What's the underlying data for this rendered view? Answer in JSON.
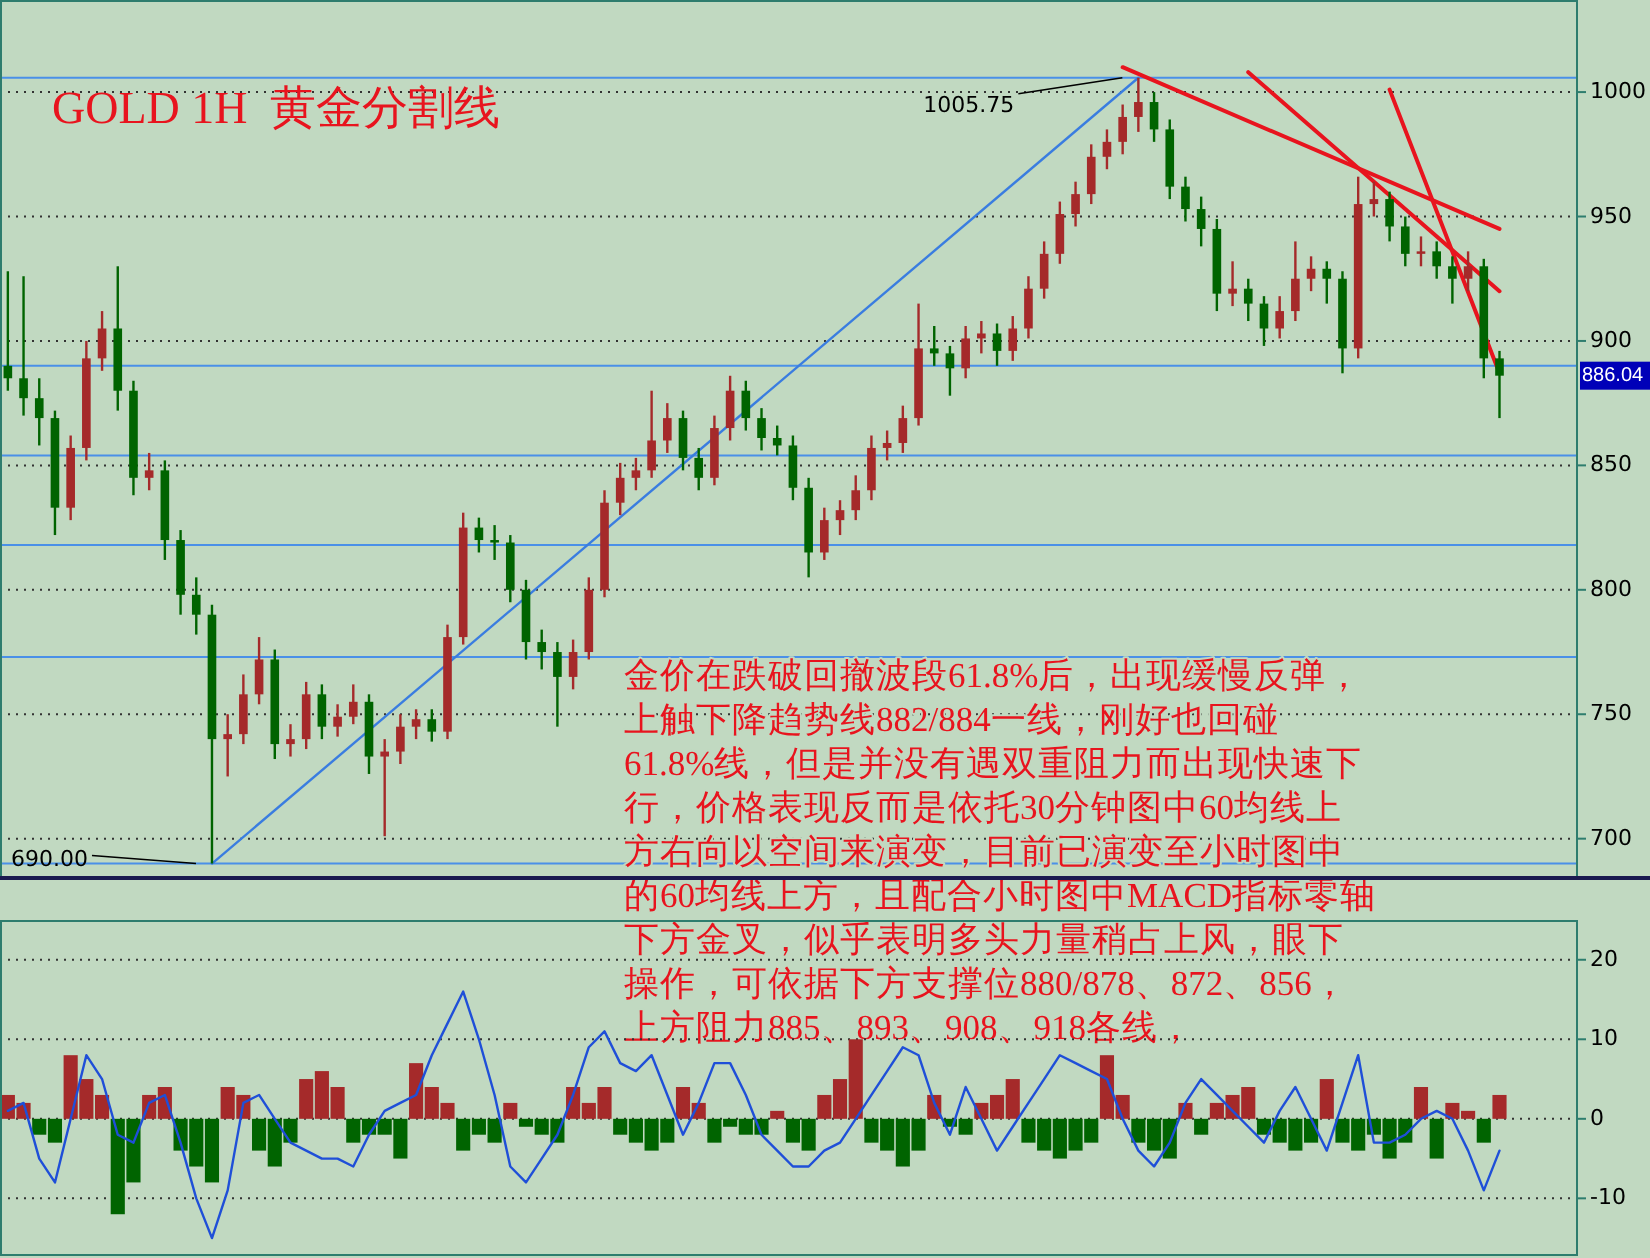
{
  "chart_data": [
    {
      "type": "candlestick",
      "title": "GOLD 1H  黄金分割线",
      "categories": [
        null,
        null,
        null,
        null,
        null,
        null,
        null,
        null,
        null,
        null,
        null,
        null,
        null,
        null,
        null,
        null,
        null,
        null,
        null,
        null,
        null,
        null,
        null,
        null,
        null,
        null,
        null,
        null,
        null,
        null,
        null,
        null,
        null,
        null,
        null,
        null,
        null,
        null,
        null,
        null,
        null,
        null,
        null,
        null,
        null,
        null,
        null,
        null,
        null,
        null,
        null,
        null,
        null,
        null,
        null,
        null,
        null,
        null,
        null,
        null,
        null,
        null,
        null,
        null,
        null,
        null,
        null,
        null,
        null,
        null,
        null,
        null,
        null,
        null,
        null,
        null,
        null,
        null,
        null,
        null,
        null,
        null,
        null,
        null,
        null,
        null,
        null,
        null,
        null,
        null,
        null,
        null,
        null,
        null,
        null,
        null
      ],
      "ohlc": [
        [
          890,
          928,
          880,
          885
        ],
        [
          885,
          926,
          870,
          877
        ],
        [
          877,
          885,
          858,
          869
        ],
        [
          869,
          872,
          822,
          833
        ],
        [
          833,
          862,
          828,
          857
        ],
        [
          857,
          900,
          852,
          893
        ],
        [
          893,
          912,
          888,
          905
        ],
        [
          905,
          930,
          872,
          880
        ],
        [
          880,
          884,
          838,
          845
        ],
        [
          845,
          855,
          840,
          848
        ],
        [
          848,
          852,
          812,
          820
        ],
        [
          820,
          824,
          790,
          798
        ],
        [
          798,
          805,
          782,
          790
        ],
        [
          790,
          794,
          690,
          740
        ],
        [
          740,
          750,
          725,
          742
        ],
        [
          742,
          766,
          738,
          758
        ],
        [
          758,
          781,
          754,
          772
        ],
        [
          772,
          776,
          732,
          738
        ],
        [
          738,
          746,
          733,
          740
        ],
        [
          740,
          763,
          736,
          758
        ],
        [
          758,
          762,
          740,
          745
        ],
        [
          745,
          754,
          741,
          749
        ],
        [
          749,
          762,
          746,
          755
        ],
        [
          755,
          758,
          726,
          733
        ],
        [
          733,
          740,
          701,
          735
        ],
        [
          735,
          750,
          730,
          745
        ],
        [
          745,
          752,
          740,
          748
        ],
        [
          748,
          752,
          739,
          743
        ],
        [
          743,
          786,
          740,
          781
        ],
        [
          781,
          831,
          778,
          825
        ],
        [
          825,
          829,
          815,
          820
        ],
        [
          820,
          826,
          812,
          819
        ],
        [
          819,
          822,
          795,
          800
        ],
        [
          800,
          804,
          772,
          779
        ],
        [
          779,
          784,
          768,
          775
        ],
        [
          775,
          779,
          745,
          765
        ],
        [
          765,
          780,
          760,
          775
        ],
        [
          775,
          805,
          772,
          800
        ],
        [
          800,
          840,
          797,
          835
        ],
        [
          835,
          851,
          830,
          845
        ],
        [
          845,
          853,
          840,
          848
        ],
        [
          848,
          880,
          845,
          860
        ],
        [
          860,
          875,
          855,
          869
        ],
        [
          869,
          872,
          848,
          853
        ],
        [
          853,
          857,
          840,
          845
        ],
        [
          845,
          870,
          842,
          865
        ],
        [
          865,
          886,
          860,
          880
        ],
        [
          880,
          884,
          864,
          869
        ],
        [
          869,
          873,
          856,
          861
        ],
        [
          861,
          866,
          854,
          858
        ],
        [
          858,
          862,
          836,
          841
        ],
        [
          841,
          845,
          805,
          815
        ],
        [
          815,
          833,
          812,
          828
        ],
        [
          828,
          836,
          822,
          832
        ],
        [
          832,
          846,
          828,
          840
        ],
        [
          840,
          862,
          836,
          857
        ],
        [
          857,
          864,
          852,
          859
        ],
        [
          859,
          874,
          855,
          869
        ],
        [
          869,
          915,
          866,
          897
        ],
        [
          897,
          906,
          890,
          895
        ],
        [
          895,
          898,
          878,
          889
        ],
        [
          889,
          906,
          885,
          901
        ],
        [
          901,
          908,
          895,
          903
        ],
        [
          903,
          907,
          890,
          896
        ],
        [
          896,
          910,
          892,
          905
        ],
        [
          905,
          926,
          901,
          921
        ],
        [
          921,
          940,
          917,
          935
        ],
        [
          935,
          956,
          931,
          951
        ],
        [
          951,
          964,
          946,
          959
        ],
        [
          959,
          979,
          955,
          974
        ],
        [
          974,
          985,
          969,
          980
        ],
        [
          980,
          995,
          975,
          990
        ],
        [
          990,
          1005.75,
          984,
          996
        ],
        [
          996,
          1000,
          980,
          985
        ],
        [
          985,
          989,
          957,
          962
        ],
        [
          962,
          966,
          948,
          953
        ],
        [
          953,
          958,
          938,
          945
        ],
        [
          945,
          949,
          912,
          919
        ],
        [
          919,
          932,
          914,
          921
        ],
        [
          921,
          925,
          908,
          915
        ],
        [
          915,
          918,
          898,
          905
        ],
        [
          905,
          918,
          901,
          912
        ],
        [
          912,
          940,
          908,
          925
        ],
        [
          925,
          934,
          920,
          929
        ],
        [
          929,
          932,
          915,
          925
        ],
        [
          925,
          928,
          887,
          897
        ],
        [
          897,
          966,
          893,
          955
        ],
        [
          955,
          964,
          950,
          957
        ],
        [
          957,
          960,
          940,
          946
        ],
        [
          946,
          950,
          930,
          935
        ],
        [
          935,
          942,
          930,
          936
        ],
        [
          936,
          940,
          925,
          930
        ],
        [
          930,
          934,
          915,
          925
        ],
        [
          925,
          936,
          920,
          930
        ],
        [
          930,
          933,
          885,
          893
        ],
        [
          893,
          896,
          869,
          886.04
        ]
      ],
      "colors": [
        "#006400",
        "#006400",
        "#006400",
        "#006400",
        "#a52a2a",
        "#a52a2a",
        "#a52a2a",
        "#006400",
        "#006400",
        "#a52a2a",
        "#006400",
        "#006400",
        "#006400",
        "#006400",
        "#a52a2a",
        "#a52a2a",
        "#a52a2a",
        "#006400",
        "#a52a2a",
        "#a52a2a",
        "#006400",
        "#a52a2a",
        "#a52a2a",
        "#006400",
        "#a52a2a",
        "#a52a2a",
        "#a52a2a",
        "#006400",
        "#a52a2a",
        "#a52a2a",
        "#006400",
        "#006400",
        "#006400",
        "#006400",
        "#006400",
        "#006400",
        "#a52a2a",
        "#a52a2a",
        "#a52a2a",
        "#a52a2a",
        "#a52a2a",
        "#a52a2a",
        "#a52a2a",
        "#006400",
        "#006400",
        "#a52a2a",
        "#a52a2a",
        "#006400",
        "#006400",
        "#006400",
        "#006400",
        "#006400",
        "#a52a2a",
        "#a52a2a",
        "#a52a2a",
        "#a52a2a",
        "#a52a2a",
        "#a52a2a",
        "#a52a2a",
        "#006400",
        "#006400",
        "#a52a2a",
        "#a52a2a",
        "#006400",
        "#a52a2a",
        "#a52a2a",
        "#a52a2a",
        "#a52a2a",
        "#a52a2a",
        "#a52a2a",
        "#a52a2a",
        "#a52a2a",
        "#a52a2a",
        "#006400",
        "#006400",
        "#006400",
        "#006400",
        "#006400",
        "#a52a2a",
        "#006400",
        "#006400",
        "#a52a2a",
        "#a52a2a",
        "#a52a2a",
        "#006400",
        "#006400",
        "#a52a2a",
        "#a52a2a",
        "#006400",
        "#006400",
        "#a52a2a",
        "#006400",
        "#006400",
        "#a52a2a",
        "#006400",
        "#006400"
      ],
      "series": [
        {
          "type": "line",
          "color": "#e8141e",
          "values": [
            null,
            null,
            null,
            null,
            null,
            null,
            null,
            null,
            null,
            null,
            null,
            null,
            null,
            null,
            null,
            null,
            null,
            null,
            null,
            null,
            null,
            null,
            null,
            null,
            null,
            null,
            null,
            null,
            null,
            null,
            null,
            null,
            null,
            null,
            null,
            null,
            null,
            null,
            null,
            null,
            null,
            null,
            null,
            null,
            null,
            null,
            null,
            null,
            null,
            null,
            null,
            null,
            null,
            null,
            null,
            null,
            null,
            null,
            null,
            null,
            null,
            null,
            null,
            null,
            null,
            null,
            null,
            null,
            null,
            null,
            null,
            1010,
            null,
            null,
            null,
            null,
            null,
            null,
            null,
            null,
            null,
            null,
            null,
            null,
            null,
            null,
            null,
            null,
            null,
            null,
            null,
            null,
            null,
            null,
            null,
            945
          ]
        },
        {
          "type": "line",
          "color": "#e8141e",
          "values": [
            null,
            null,
            null,
            null,
            null,
            null,
            null,
            null,
            null,
            null,
            null,
            null,
            null,
            null,
            null,
            null,
            null,
            null,
            null,
            null,
            null,
            null,
            null,
            null,
            null,
            null,
            null,
            null,
            null,
            null,
            null,
            null,
            null,
            null,
            null,
            null,
            null,
            null,
            null,
            null,
            null,
            null,
            null,
            null,
            null,
            null,
            null,
            null,
            null,
            null,
            null,
            null,
            null,
            null,
            null,
            null,
            null,
            null,
            null,
            null,
            null,
            null,
            null,
            null,
            null,
            null,
            null,
            null,
            null,
            null,
            null,
            null,
            null,
            null,
            null,
            null,
            null,
            null,
            null,
            1008,
            null,
            null,
            null,
            null,
            null,
            null,
            null,
            null,
            null,
            null,
            null,
            null,
            null,
            null,
            null,
            920
          ]
        },
        {
          "type": "line",
          "color": "#e8141e",
          "values": [
            null,
            null,
            null,
            null,
            null,
            null,
            null,
            null,
            null,
            null,
            null,
            null,
            null,
            null,
            null,
            null,
            null,
            null,
            null,
            null,
            null,
            null,
            null,
            null,
            null,
            null,
            null,
            null,
            null,
            null,
            null,
            null,
            null,
            null,
            null,
            null,
            null,
            null,
            null,
            null,
            null,
            null,
            null,
            null,
            null,
            null,
            null,
            null,
            null,
            null,
            null,
            null,
            null,
            null,
            null,
            null,
            null,
            null,
            null,
            null,
            null,
            null,
            null,
            null,
            null,
            null,
            null,
            null,
            null,
            null,
            null,
            null,
            null,
            null,
            null,
            null,
            null,
            null,
            null,
            null,
            null,
            null,
            null,
            null,
            null,
            null,
            null,
            null,
            1001,
            null,
            null,
            null,
            null,
            null,
            null,
            887
          ]
        },
        {
          "type": "line",
          "color": "#3a7de0",
          "values": [
            null,
            null,
            null,
            null,
            null,
            null,
            null,
            null,
            null,
            null,
            null,
            null,
            null,
            690,
            null,
            null,
            null,
            null,
            null,
            null,
            null,
            null,
            null,
            null,
            null,
            null,
            null,
            null,
            null,
            null,
            null,
            null,
            null,
            null,
            null,
            null,
            null,
            null,
            null,
            null,
            null,
            null,
            null,
            null,
            null,
            null,
            null,
            null,
            null,
            null,
            null,
            null,
            null,
            null,
            null,
            null,
            null,
            null,
            null,
            null,
            null,
            null,
            null,
            null,
            null,
            null,
            null,
            null,
            null,
            null,
            null,
            null,
            1005.75,
            null,
            null,
            null,
            null,
            null,
            null,
            null,
            null,
            null,
            null,
            null,
            null,
            null,
            null,
            null,
            null,
            null,
            null,
            null,
            null,
            null,
            null,
            null
          ]
        }
      ],
      "ref_lines": [
        {
          "axis": "y",
          "value": 1005.75,
          "color": "#4a90e8"
        },
        {
          "axis": "y",
          "value": 890,
          "color": "#4a90e8"
        },
        {
          "axis": "y",
          "value": 854,
          "color": "#4a90e8"
        },
        {
          "axis": "y",
          "value": 818,
          "color": "#4a90e8"
        },
        {
          "axis": "y",
          "value": 773,
          "color": "#4a90e8"
        },
        {
          "axis": "y",
          "value": 690,
          "color": "#4a90e8"
        }
      ],
      "annotations": [
        {
          "text": "1005.75",
          "y": 1005.75
        },
        {
          "text": "690.00",
          "y": 690
        },
        "886.04",
        "金价在跌破回撤波段61.8%后，出现缓慢反弹，",
        "上触下降趋势线882/884一线，刚好也回碰",
        "61.8%线，但是并没有遇双重阻力而出现快速下",
        "行，价格表现反而是依托30分钟图中60均线上",
        "方右向以空间来演变，目前已演变至小时图中",
        "的60均线上方，且配合小时图中MACD指标零轴",
        "下方金叉，似乎表明多头力量稍占上风，眼下",
        "操作，可依据下方支撑位880/878、872、856，",
        "上方阻力885、893、908、918各线，"
      ],
      "ylim": [
        685,
        1037
      ],
      "yticks": [
        700,
        750,
        800,
        850,
        900,
        950,
        1000
      ],
      "grid": "y",
      "tick_labels": "y"
    },
    {
      "type": "bar",
      "categories": [
        null,
        null,
        null,
        null,
        null,
        null,
        null,
        null,
        null,
        null,
        null,
        null,
        null,
        null,
        null,
        null,
        null,
        null,
        null,
        null,
        null,
        null,
        null,
        null,
        null,
        null,
        null,
        null,
        null,
        null,
        null,
        null,
        null,
        null,
        null,
        null,
        null,
        null,
        null,
        null,
        null,
        null,
        null,
        null,
        null,
        null,
        null,
        null,
        null,
        null,
        null,
        null,
        null,
        null,
        null,
        null,
        null,
        null,
        null,
        null,
        null,
        null,
        null,
        null,
        null,
        null,
        null,
        null,
        null,
        null,
        null,
        null,
        null,
        null,
        null,
        null,
        null,
        null,
        null,
        null,
        null,
        null,
        null,
        null,
        null,
        null,
        null,
        null,
        null,
        null,
        null,
        null,
        null,
        null,
        null,
        null
      ],
      "series": [
        {
          "type": "bar",
          "color": "#a52a2a",
          "values": [
            3,
            2,
            null,
            null,
            8,
            5,
            3,
            null,
            null,
            3,
            4,
            null,
            null,
            null,
            4,
            3,
            null,
            null,
            null,
            5,
            6,
            4,
            null,
            null,
            null,
            null,
            7,
            4,
            2,
            null,
            null,
            null,
            2,
            null,
            null,
            null,
            4,
            2,
            4,
            null,
            null,
            null,
            null,
            4,
            2,
            null,
            null,
            null,
            null,
            1,
            null,
            null,
            3,
            5,
            10,
            null,
            null,
            null,
            null,
            3,
            null,
            null,
            2,
            3,
            5,
            null,
            null,
            null,
            null,
            null,
            8,
            3,
            null,
            null,
            null,
            2,
            null,
            2,
            3,
            4,
            null,
            null,
            null,
            null,
            5,
            null,
            null,
            null,
            null,
            null,
            4,
            null,
            2,
            1,
            null,
            3
          ]
        },
        {
          "type": "bar",
          "color": "#006400",
          "values": [
            null,
            null,
            -2,
            -3,
            null,
            null,
            null,
            -12,
            -8,
            null,
            null,
            -4,
            -6,
            -8,
            null,
            null,
            -4,
            -6,
            -3,
            null,
            null,
            null,
            -3,
            -2,
            -2,
            -5,
            null,
            null,
            null,
            -4,
            -2,
            -3,
            null,
            -1,
            -2,
            -3,
            null,
            null,
            null,
            -2,
            -3,
            -4,
            -3,
            null,
            null,
            -3,
            -1,
            -2,
            -2,
            null,
            -3,
            -4,
            null,
            null,
            null,
            -3,
            -4,
            -6,
            -4,
            null,
            -1,
            -2,
            null,
            null,
            null,
            -3,
            -4,
            -5,
            -4,
            -3,
            null,
            null,
            -3,
            -4,
            -5,
            null,
            -2,
            null,
            null,
            null,
            -2,
            -3,
            -4,
            -3,
            null,
            -3,
            -4,
            -2,
            -5,
            -3,
            null,
            -5,
            null,
            null,
            -3,
            null
          ]
        },
        {
          "type": "line",
          "color": "#1f4fd8",
          "values": [
            1,
            2,
            -5,
            -8,
            0,
            8,
            5,
            -2,
            -3,
            2,
            3,
            -3,
            -10,
            -15,
            -9,
            2,
            3,
            0,
            -3,
            -4,
            -5,
            -5,
            -6,
            -2,
            1,
            2,
            3,
            8,
            12,
            16,
            10,
            3,
            -6,
            -8,
            -5,
            -2,
            3,
            9,
            11,
            7,
            6,
            8,
            3,
            -2,
            2,
            7,
            7,
            3,
            -2,
            -4,
            -6,
            -6,
            -4,
            -3,
            0,
            3,
            6,
            9,
            8,
            2,
            -2,
            4,
            0,
            -4,
            -1,
            2,
            5,
            8,
            7,
            6,
            5,
            0,
            -4,
            -6,
            -3,
            2,
            5,
            3,
            1,
            -1,
            -3,
            1,
            4,
            0,
            -4,
            2,
            8,
            -3,
            -3,
            -2,
            0,
            1,
            0,
            -4,
            -9,
            -4
          ]
        }
      ],
      "ylim": [
        -17,
        25
      ],
      "yticks": [
        {
          "value": 20,
          "label": "20"
        },
        {
          "value": 10,
          "label": "10"
        },
        0,
        {
          "value": -10,
          "label": "-10"
        }
      ],
      "grid": "y",
      "tick_labels": "y"
    }
  ]
}
